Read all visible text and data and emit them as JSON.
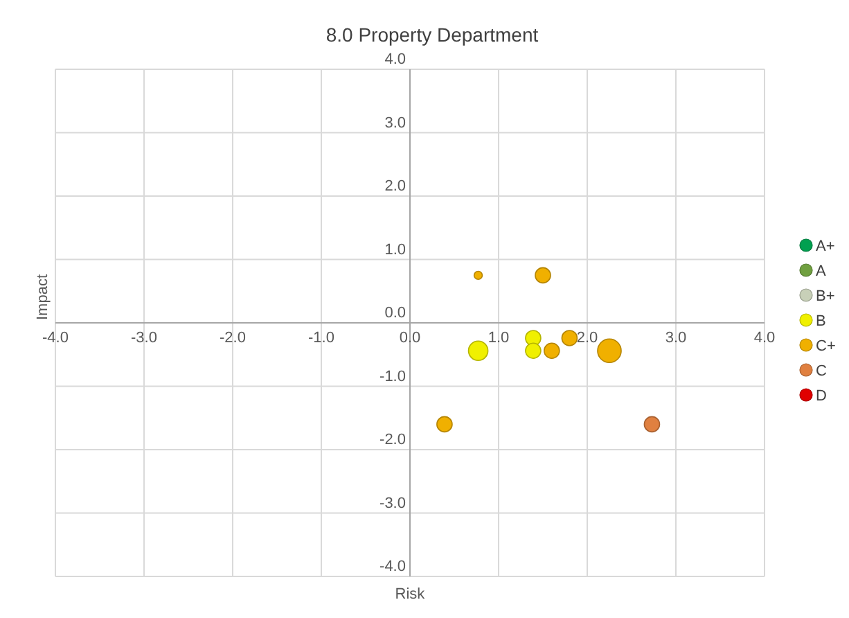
{
  "chart_data": {
    "type": "bubble",
    "title": "8.0 Property Department",
    "xlabel": "Risk",
    "ylabel": "Impact",
    "xlim": [
      -4,
      4
    ],
    "xticks": [
      {
        "value": -4,
        "label": "-4.0"
      },
      {
        "value": -3,
        "label": "-3.0"
      },
      {
        "value": -2,
        "label": "-2.0"
      },
      {
        "value": -1,
        "label": "-1.0"
      },
      {
        "value": 0,
        "label": "0.0"
      },
      {
        "value": 1,
        "label": "1.0"
      },
      {
        "value": 2,
        "label": "2.0"
      },
      {
        "value": 3,
        "label": "3.0"
      },
      {
        "value": 4,
        "label": "4.0"
      }
    ],
    "ylim": [
      -4,
      4
    ],
    "yticks": [
      {
        "value": -4,
        "label": "-4.0"
      },
      {
        "value": -3,
        "label": "-3.0"
      },
      {
        "value": -2,
        "label": "-2.0"
      },
      {
        "value": -1,
        "label": "-1.0"
      },
      {
        "value": 0,
        "label": "0.0"
      },
      {
        "value": 1,
        "label": "1.0"
      },
      {
        "value": 2,
        "label": "2.0"
      },
      {
        "value": 3,
        "label": "3.0"
      },
      {
        "value": 4,
        "label": "4.0"
      }
    ],
    "grid": true,
    "legend": "right",
    "series": [
      {
        "name": "A+",
        "color": "#00a050"
      },
      {
        "name": "A",
        "color": "#70a040"
      },
      {
        "name": "B+",
        "color": "#c8d0b8"
      },
      {
        "name": "B",
        "color": "#f0f000",
        "x": [
          0.77,
          1.39,
          1.39
        ],
        "values": [
          -0.44,
          -0.24,
          -0.44
        ],
        "sizes": [
          0.68,
          0.42,
          0.42
        ]
      },
      {
        "name": "C+",
        "color": "#f0b000",
        "x": [
          0.77,
          1.5,
          1.6,
          1.8,
          2.25,
          0.39
        ],
        "values": [
          0.75,
          0.75,
          -0.44,
          -0.24,
          -0.44,
          -1.6
        ],
        "sizes": [
          0.12,
          0.42,
          0.42,
          0.42,
          1,
          0.42
        ]
      },
      {
        "name": "C",
        "color": "#e08040",
        "x": [
          2.73
        ],
        "values": [
          -1.6
        ],
        "sizes": [
          0.42
        ]
      },
      {
        "name": "D",
        "color": "#e00000"
      }
    ]
  }
}
